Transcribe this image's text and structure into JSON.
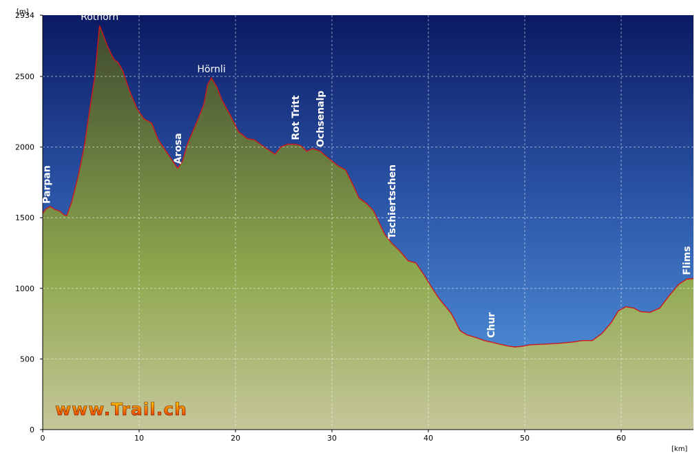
{
  "chart_data": {
    "type": "area",
    "xlabel": "",
    "ylabel": "",
    "x_unit": "[km]",
    "y_unit": "[m]",
    "xlim": [
      0,
      67.5
    ],
    "ylim": [
      0,
      2934
    ],
    "x_ticks": [
      0,
      10,
      20,
      30,
      40,
      50,
      60
    ],
    "y_ticks": [
      0,
      500,
      1000,
      1500,
      2000,
      2500,
      2934
    ],
    "grid": true,
    "colors": {
      "sky_top": "#0b1a63",
      "sky_mid": "#2c56a8",
      "sky_bottom": "#5aa0e6",
      "fill_top": "#3f4a2f",
      "fill_mid": "#8ea84e",
      "fill_bottom": "#c6c79a",
      "line": "#d01818",
      "brand_top": "#ffe100",
      "brand_bottom": "#e52100"
    },
    "points": [
      [
        0,
        1530
      ],
      [
        0.3,
        1560
      ],
      [
        0.8,
        1580
      ],
      [
        1.2,
        1560
      ],
      [
        1.8,
        1545
      ],
      [
        2.2,
        1520
      ],
      [
        2.5,
        1515
      ],
      [
        3.0,
        1610
      ],
      [
        3.7,
        1800
      ],
      [
        4.3,
        2000
      ],
      [
        4.8,
        2230
      ],
      [
        5.4,
        2500
      ],
      [
        5.9,
        2860
      ],
      [
        6.3,
        2790
      ],
      [
        6.8,
        2700
      ],
      [
        7.4,
        2620
      ],
      [
        7.8,
        2600
      ],
      [
        8.3,
        2540
      ],
      [
        9.0,
        2400
      ],
      [
        9.8,
        2270
      ],
      [
        10.5,
        2200
      ],
      [
        11.3,
        2170
      ],
      [
        12.0,
        2050
      ],
      [
        12.7,
        1980
      ],
      [
        13.3,
        1920
      ],
      [
        14.0,
        1850
      ],
      [
        14.5,
        1900
      ],
      [
        15.0,
        2020
      ],
      [
        16.0,
        2180
      ],
      [
        16.7,
        2300
      ],
      [
        17.1,
        2440
      ],
      [
        17.5,
        2490
      ],
      [
        18.1,
        2420
      ],
      [
        18.6,
        2330
      ],
      [
        19.5,
        2220
      ],
      [
        20.3,
        2110
      ],
      [
        21.2,
        2060
      ],
      [
        22.0,
        2050
      ],
      [
        23.2,
        1990
      ],
      [
        24.1,
        1950
      ],
      [
        24.7,
        2000
      ],
      [
        25.4,
        2020
      ],
      [
        26.2,
        2020
      ],
      [
        26.8,
        2010
      ],
      [
        27.4,
        1970
      ],
      [
        28.0,
        1990
      ],
      [
        28.8,
        1970
      ],
      [
        29.5,
        1930
      ],
      [
        30.2,
        1890
      ],
      [
        30.8,
        1860
      ],
      [
        31.4,
        1840
      ],
      [
        32.2,
        1730
      ],
      [
        32.8,
        1640
      ],
      [
        33.6,
        1600
      ],
      [
        34.3,
        1550
      ],
      [
        35.0,
        1450
      ],
      [
        35.5,
        1380
      ],
      [
        36.2,
        1320
      ],
      [
        37.1,
        1260
      ],
      [
        37.9,
        1195
      ],
      [
        38.7,
        1180
      ],
      [
        39.6,
        1090
      ],
      [
        40.5,
        990
      ],
      [
        41.2,
        920
      ],
      [
        42.4,
        820
      ],
      [
        43.3,
        700
      ],
      [
        44.0,
        670
      ],
      [
        45.0,
        650
      ],
      [
        45.8,
        630
      ],
      [
        46.5,
        620
      ],
      [
        47.4,
        605
      ],
      [
        48.4,
        590
      ],
      [
        49.0,
        585
      ],
      [
        49.8,
        590
      ],
      [
        50.5,
        600
      ],
      [
        52.0,
        605
      ],
      [
        53.5,
        610
      ],
      [
        55.0,
        620
      ],
      [
        56.0,
        630
      ],
      [
        57.0,
        630
      ],
      [
        58.0,
        680
      ],
      [
        59.0,
        760
      ],
      [
        59.7,
        840
      ],
      [
        60.5,
        870
      ],
      [
        61.3,
        860
      ],
      [
        62.0,
        835
      ],
      [
        63.0,
        830
      ],
      [
        64.0,
        860
      ],
      [
        65.0,
        950
      ],
      [
        66.0,
        1030
      ],
      [
        66.8,
        1065
      ],
      [
        67.5,
        1070
      ]
    ],
    "annotations": [
      {
        "label": "Rothorn",
        "x": 5.9,
        "y": 2860,
        "orientation": "horizontal"
      },
      {
        "label": "Hörnli",
        "x": 17.5,
        "y": 2490,
        "orientation": "horizontal"
      },
      {
        "label": "Parpan",
        "x": 0.4,
        "y": 1570,
        "orientation": "vertical"
      },
      {
        "label": "Arosa",
        "x": 14.0,
        "y": 1850,
        "orientation": "vertical"
      },
      {
        "label": "Rot Tritt",
        "x": 26.2,
        "y": 2020,
        "orientation": "vertical"
      },
      {
        "label": "Ochsenalp",
        "x": 28.8,
        "y": 1970,
        "orientation": "vertical"
      },
      {
        "label": "Tschiertschen",
        "x": 36.2,
        "y": 1320,
        "orientation": "vertical"
      },
      {
        "label": "Chur",
        "x": 46.5,
        "y": 620,
        "orientation": "vertical"
      },
      {
        "label": "Flims",
        "x": 66.8,
        "y": 1065,
        "orientation": "vertical"
      }
    ]
  },
  "watermark": "www.Trail.ch"
}
